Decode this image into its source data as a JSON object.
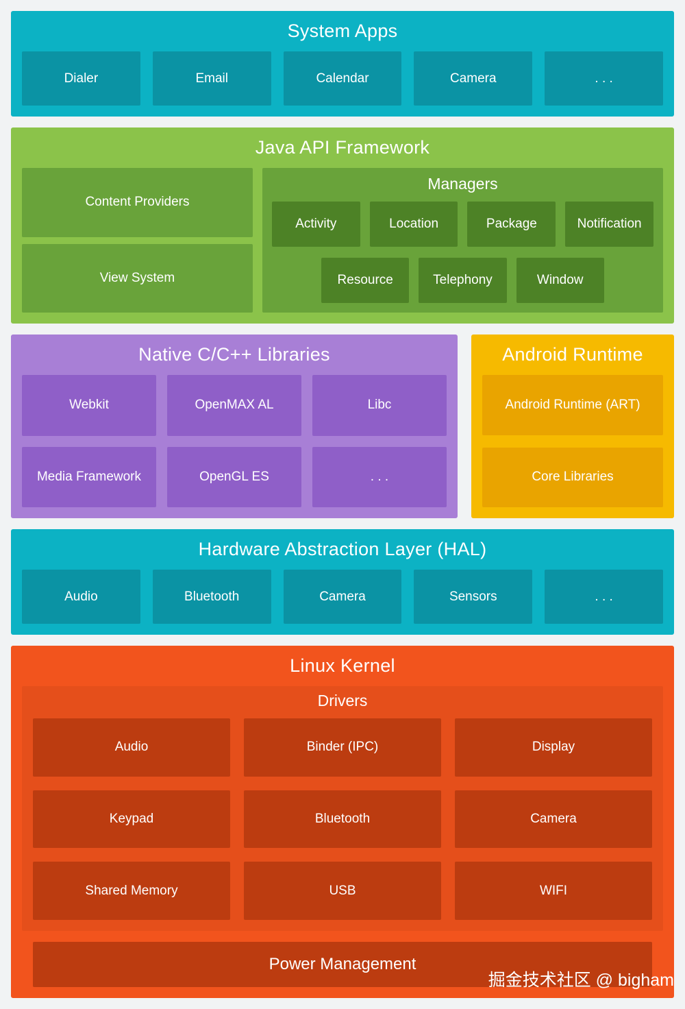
{
  "system_apps": {
    "title": "System Apps",
    "items": [
      "Dialer",
      "Email",
      "Calendar",
      "Camera",
      ". . ."
    ]
  },
  "java_api": {
    "title": "Java API Framework",
    "left_items": [
      "Content Providers",
      "View System"
    ],
    "managers": {
      "title": "Managers",
      "row1": [
        "Activity",
        "Location",
        "Package",
        "Notification"
      ],
      "row2": [
        "Resource",
        "Telephony",
        "Window"
      ]
    }
  },
  "native_libs": {
    "title": "Native C/C++ Libraries",
    "items": [
      "Webkit",
      "OpenMAX AL",
      "Libc",
      "Media Framework",
      "OpenGL ES",
      ". . ."
    ]
  },
  "android_runtime": {
    "title": "Android Runtime",
    "items": [
      "Android Runtime (ART)",
      "Core Libraries"
    ]
  },
  "hal": {
    "title": "Hardware Abstraction Layer (HAL)",
    "items": [
      "Audio",
      "Bluetooth",
      "Camera",
      "Sensors",
      ". . ."
    ]
  },
  "linux_kernel": {
    "title": "Linux Kernel",
    "drivers": {
      "title": "Drivers",
      "items": [
        "Audio",
        "Binder (IPC)",
        "Display",
        "Keypad",
        "Bluetooth",
        "Camera",
        "Shared Memory",
        "USB",
        "WIFI"
      ]
    },
    "power": "Power Management"
  },
  "watermark": "掘金技术社区 @ bigham",
  "colors": {
    "background": "#f1f3f4",
    "teal_section": "#0cb2c4",
    "teal_chip": "#0b93a4",
    "green_section": "#8bc34a",
    "green_chip": "#69a33a",
    "green_dark_chip": "#4d8226",
    "purple_section": "#a87fd6",
    "purple_chip": "#8f5fc8",
    "amber_section": "#f6ba00",
    "amber_chip": "#e9a400",
    "orange_section": "#f2541d",
    "orange_chip": "#bc3c10",
    "text": "#ffffff"
  }
}
